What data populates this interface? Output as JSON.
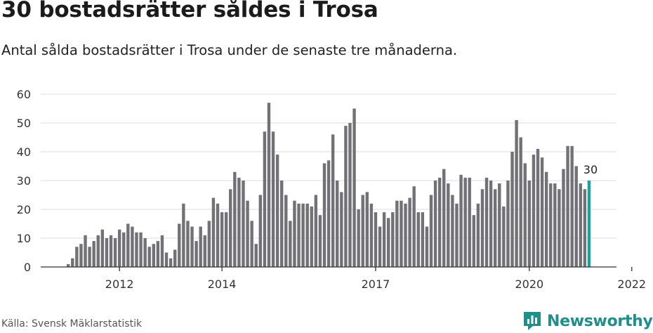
{
  "title": "30 bostadsrätter såldes i Trosa",
  "subtitle": "Antal sålda bostadsrätter i Trosa under de senaste tre månaderna.",
  "source": "Källa: Svensk Mäklarstatistik",
  "brand": "Newsworthy",
  "colors": {
    "bar": "#727176",
    "highlight": "#1aa39a",
    "grid": "#dcdcdc",
    "axis": "#333333",
    "brand": "#1f8f8b"
  },
  "chart_data": {
    "type": "bar",
    "title": "30 bostadsrätter såldes i Trosa",
    "ylim": [
      0,
      60
    ],
    "yticks": [
      0,
      10,
      20,
      30,
      40,
      50,
      60
    ],
    "xticks": [
      "2012",
      "2014",
      "2017",
      "2020",
      "2022"
    ],
    "grid": true,
    "highlight_label": "30",
    "values": [
      1,
      3,
      7,
      8,
      11,
      7,
      9,
      11,
      13,
      10,
      11,
      10,
      13,
      12,
      15,
      14,
      12,
      12,
      10,
      7,
      8,
      9,
      11,
      5,
      3,
      6,
      15,
      22,
      16,
      14,
      9,
      14,
      11,
      16,
      24,
      22,
      19,
      19,
      27,
      33,
      31,
      30,
      23,
      16,
      8,
      25,
      47,
      57,
      47,
      39,
      30,
      25,
      16,
      23,
      22,
      22,
      22,
      21,
      25,
      18,
      36,
      37,
      46,
      30,
      26,
      49,
      50,
      55,
      20,
      25,
      26,
      22,
      19,
      14,
      19,
      17,
      19,
      23,
      23,
      22,
      24,
      28,
      19,
      19,
      14,
      25,
      30,
      31,
      34,
      29,
      25,
      22,
      32,
      31,
      31,
      18,
      22,
      27,
      31,
      30,
      27,
      29,
      21,
      30,
      40,
      51,
      45,
      36,
      30,
      39,
      41,
      38,
      33,
      29,
      29,
      27,
      34,
      42,
      42,
      35,
      29,
      27,
      30
    ]
  }
}
